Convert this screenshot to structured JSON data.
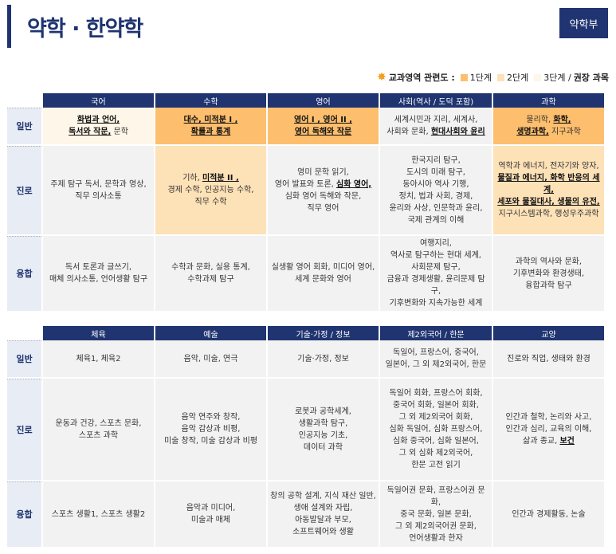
{
  "header": {
    "title": "약학 · 한약학",
    "department": "약학부"
  },
  "legend": {
    "title": "교과영역 관련도 :",
    "level1": "1단계",
    "level2": "2단계",
    "level3": "3단계 /",
    "recommended": "권장 과목",
    "colors": {
      "level1": "#fdbf6e",
      "level2": "#fde1b7",
      "level3": "#fef6e8",
      "header": "#1f3470"
    }
  },
  "table1": {
    "columns": [
      "국어",
      "수학",
      "영어",
      "사회(역사 / 도덕 포함)",
      "과학"
    ],
    "rows": [
      {
        "label": "일반",
        "cells": [
          {
            "level": "l3",
            "parts": [
              {
                "t": "화법과 언어,",
                "b": true
              },
              {
                "t": "\n",
                "b": false
              },
              {
                "t": "독서와 작문,",
                "b": true
              },
              {
                "t": " 문학",
                "b": false
              }
            ]
          },
          {
            "level": "l1",
            "parts": [
              {
                "t": "대수, 미적분 I ,",
                "b": true
              },
              {
                "t": "\n",
                "b": false
              },
              {
                "t": "확률과 통계",
                "b": true
              }
            ]
          },
          {
            "level": "l1",
            "parts": [
              {
                "t": "영어 I , 영어 II ,",
                "b": true
              },
              {
                "t": "\n",
                "b": false
              },
              {
                "t": "영어 독해와 작문",
                "b": true
              }
            ]
          },
          {
            "level": "",
            "parts": [
              {
                "t": "세계시민과 지리, 세계사,\n사회와 문화, ",
                "b": false
              },
              {
                "t": "현대사회와 윤리",
                "b": true
              }
            ]
          },
          {
            "level": "l1",
            "parts": [
              {
                "t": "물리학, ",
                "b": false
              },
              {
                "t": "화학,",
                "b": true
              },
              {
                "t": "\n",
                "b": false
              },
              {
                "t": "생명과학,",
                "b": true
              },
              {
                "t": " 지구과학",
                "b": false
              }
            ]
          }
        ]
      },
      {
        "label": "진로",
        "cells": [
          {
            "level": "",
            "parts": [
              {
                "t": "주제 탐구 독서, 문학과 영상,\n직무 의사소통",
                "b": false
              }
            ]
          },
          {
            "level": "l2",
            "parts": [
              {
                "t": "기하, ",
                "b": false
              },
              {
                "t": "미적분 II ,",
                "b": true
              },
              {
                "t": "\n경제 수학, 인공지능 수학,\n직무 수학",
                "b": false
              }
            ]
          },
          {
            "level": "",
            "parts": [
              {
                "t": "영미 문학 읽기,\n영어 발표와 토론, ",
                "b": false
              },
              {
                "t": "심화 영어,",
                "b": true
              },
              {
                "t": "\n심화 영어 독해와 작문,\n직무 영어",
                "b": false
              }
            ]
          },
          {
            "level": "",
            "parts": [
              {
                "t": "한국지리 탐구,\n도시의 미래 탐구,\n동아시아 역사 기행,\n정치, 법과 사회, 경제,\n윤리와 사상, 인문학과 윤리,\n국제 관계의 이해",
                "b": false
              }
            ]
          },
          {
            "level": "l2",
            "parts": [
              {
                "t": "역학과 에너지, 전자기와 양자,\n",
                "b": false
              },
              {
                "t": "물질과 에너지, 화학 반응의 세계,",
                "b": true
              },
              {
                "t": "\n",
                "b": false
              },
              {
                "t": "세포와 물질대사, 생물의 유전,",
                "b": true
              },
              {
                "t": "\n지구시스템과학, 행성우주과학",
                "b": false
              }
            ]
          }
        ]
      },
      {
        "label": "융합",
        "cells": [
          {
            "level": "",
            "parts": [
              {
                "t": "독서 토론과 글쓰기,\n매체 의사소통, 언어생활 탐구",
                "b": false
              }
            ]
          },
          {
            "level": "",
            "parts": [
              {
                "t": "수학과 문화, 실용 통계,\n수학과제 탐구",
                "b": false
              }
            ]
          },
          {
            "level": "",
            "parts": [
              {
                "t": "실생활 영어 회화, 미디어 영어,\n세계 문화와 영어",
                "b": false
              }
            ]
          },
          {
            "level": "",
            "parts": [
              {
                "t": "여행지리,\n역사로 탐구하는 현대 세계,\n사회문제 탐구,\n금융과 경제생활, 윤리문제 탐구,\n기후변화와 지속가능한 세계",
                "b": false
              }
            ]
          },
          {
            "level": "",
            "parts": [
              {
                "t": "과학의 역사와 문화,\n기후변화와 환경생태,\n융합과학 탐구",
                "b": false
              }
            ]
          }
        ]
      }
    ]
  },
  "table2": {
    "columns": [
      "체육",
      "예술",
      "기술·가정 / 정보",
      "제2외국어 / 한문",
      "교양"
    ],
    "rows": [
      {
        "label": "일반",
        "cells": [
          {
            "level": "",
            "parts": [
              {
                "t": "체육1, 체육2",
                "b": false
              }
            ]
          },
          {
            "level": "",
            "parts": [
              {
                "t": "음악, 미술, 연극",
                "b": false
              }
            ]
          },
          {
            "level": "",
            "parts": [
              {
                "t": "기술·가정, 정보",
                "b": false
              }
            ]
          },
          {
            "level": "",
            "parts": [
              {
                "t": "독일어, 프랑스어, 중국어,\n일본어, 그 외 제2외국어, 한문",
                "b": false
              }
            ]
          },
          {
            "level": "",
            "parts": [
              {
                "t": "진로와 직업, 생태와 환경",
                "b": false
              }
            ]
          }
        ]
      },
      {
        "label": "진로",
        "cells": [
          {
            "level": "",
            "parts": [
              {
                "t": "운동과 건강, 스포츠 문화,\n스포츠 과학",
                "b": false
              }
            ]
          },
          {
            "level": "",
            "parts": [
              {
                "t": "음악 연주와 창작,\n음악 감상과 비평,\n미술 창작, 미술 감상과 비평",
                "b": false
              }
            ]
          },
          {
            "level": "",
            "parts": [
              {
                "t": "로봇과 공학세계,\n생활과학 탐구,\n인공지능 기초,\n데이터 과학",
                "b": false
              }
            ]
          },
          {
            "level": "",
            "parts": [
              {
                "t": "독일어 회화, 프랑스어 회화,\n중국어 회화, 일본어 회화,\n그 외 제2외국어 회화,\n심화 독일어, 심화 프랑스어,\n심화 중국어, 심화 일본어,\n그 외 심화 제2외국어,\n한문 고전 읽기",
                "b": false
              }
            ]
          },
          {
            "level": "",
            "parts": [
              {
                "t": "인간과 철학, 논리와 사고,\n인간과 심리, 교육의 이해,\n삶과 종교, ",
                "b": false
              },
              {
                "t": "보건",
                "b": true
              }
            ]
          }
        ]
      },
      {
        "label": "융합",
        "cells": [
          {
            "level": "",
            "parts": [
              {
                "t": "스포츠 생활1, 스포츠 생활2",
                "b": false
              }
            ]
          },
          {
            "level": "",
            "parts": [
              {
                "t": "음악과 미디어,\n미술과 매체",
                "b": false
              }
            ]
          },
          {
            "level": "",
            "parts": [
              {
                "t": "창의 공학 설계, 지식 재산 일반,\n생애 설계와 자립,\n아동발달과 부모,\n소프트웨어와 생활",
                "b": false
              }
            ]
          },
          {
            "level": "",
            "parts": [
              {
                "t": "독일어권 문화, 프랑스어권 문화,\n중국 문화, 일본 문화,\n그 외 제2외국어권 문화,\n언어생활과 한자",
                "b": false
              }
            ]
          },
          {
            "level": "",
            "parts": [
              {
                "t": "인간과 경제활동, 논술",
                "b": false
              }
            ]
          }
        ]
      }
    ]
  }
}
